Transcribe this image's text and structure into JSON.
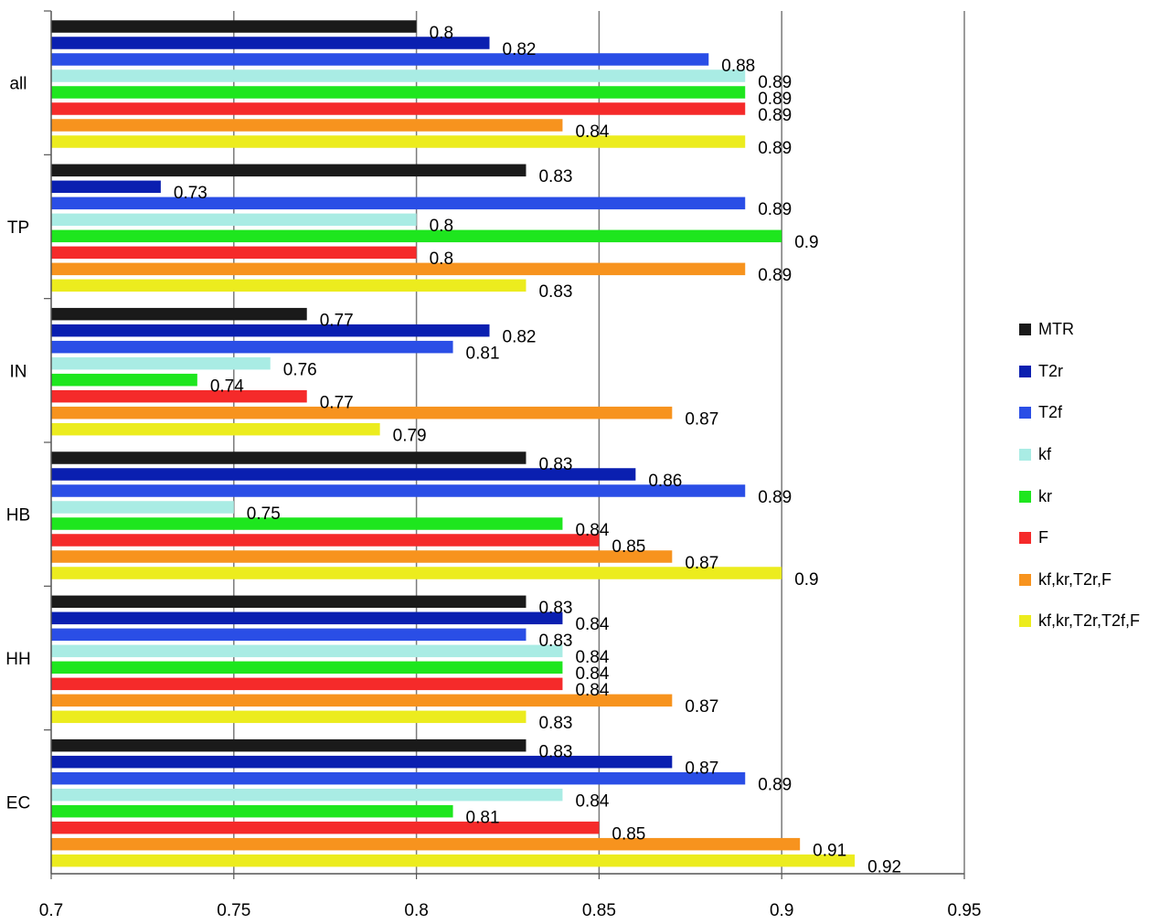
{
  "chart_data": {
    "type": "bar",
    "orientation": "horizontal",
    "categories": [
      "all",
      "TP",
      "IN",
      "HB",
      "HH",
      "EC"
    ],
    "xlim": [
      0.7,
      0.95
    ],
    "x_ticks": [
      "0.7",
      "0.75",
      "0.8",
      "0.85",
      "0.9",
      "0.95"
    ],
    "grid": "vertical",
    "legend_position": "right",
    "series": [
      {
        "name": "MTR",
        "color": "#1a1a1a",
        "values": [
          0.8,
          0.83,
          0.77,
          0.83,
          0.83,
          0.83
        ],
        "labels": [
          "0.8",
          "0.83",
          "0.77",
          "0.83",
          "0.83",
          "0.83"
        ]
      },
      {
        "name": "T2r",
        "color": "#0a1fb0",
        "values": [
          0.82,
          0.73,
          0.82,
          0.86,
          0.84,
          0.87
        ],
        "labels": [
          "0.82",
          "0.73",
          "0.82",
          "0.86",
          "0.84",
          "0.87"
        ]
      },
      {
        "name": "T2f",
        "color": "#2a4ee6",
        "values": [
          0.88,
          0.89,
          0.81,
          0.89,
          0.83,
          0.89
        ],
        "labels": [
          "0.88",
          "0.89",
          "0.81",
          "0.89",
          "0.83",
          "0.89"
        ]
      },
      {
        "name": "kf",
        "color": "#a9ece4",
        "values": [
          0.89,
          0.8,
          0.76,
          0.75,
          0.84,
          0.84
        ],
        "labels": [
          "0.89",
          "0.8",
          "0.76",
          "0.75",
          "0.84",
          "0.84"
        ]
      },
      {
        "name": "kr",
        "color": "#1ee61e",
        "values": [
          0.89,
          0.9,
          0.74,
          0.84,
          0.84,
          0.81
        ],
        "labels": [
          "0.89",
          "0.9",
          "0.74",
          "0.84",
          "0.84",
          "0.81"
        ]
      },
      {
        "name": "F",
        "color": "#f52a2a",
        "values": [
          0.89,
          0.8,
          0.77,
          0.85,
          0.84,
          0.85
        ],
        "labels": [
          "0.89",
          "0.8",
          "0.77",
          "0.85",
          "0.84",
          "0.85"
        ]
      },
      {
        "name": "kf,kr,T2r,F",
        "color": "#f7931e",
        "values": [
          0.84,
          0.89,
          0.87,
          0.87,
          0.87,
          0.905
        ],
        "labels": [
          "0.84",
          "0.89",
          "0.87",
          "0.87",
          "0.87",
          "0.91"
        ]
      },
      {
        "name": "kf,kr,T2r,T2f,F",
        "color": "#ecec1e",
        "values": [
          0.89,
          0.83,
          0.79,
          0.9,
          0.83,
          0.92
        ],
        "labels": [
          "0.89",
          "0.83",
          "0.79",
          "0.9",
          "0.83",
          "0.92"
        ]
      }
    ]
  }
}
